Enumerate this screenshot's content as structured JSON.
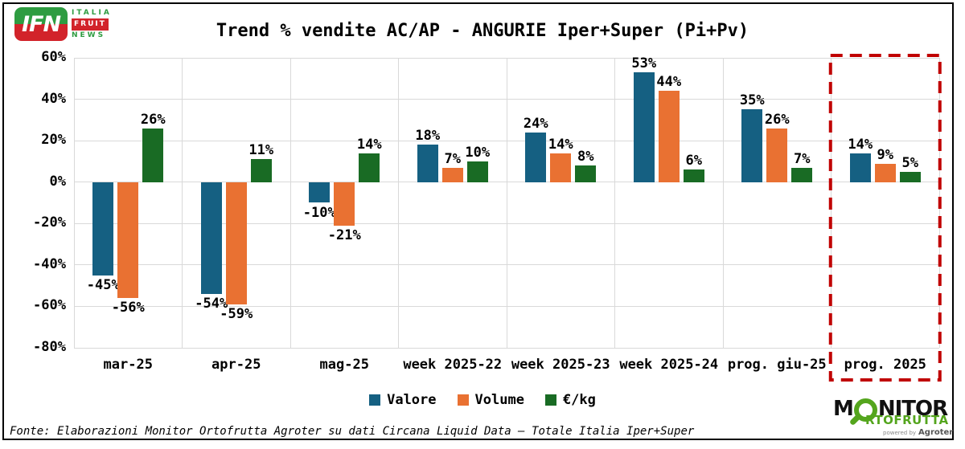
{
  "ifn_logo": {
    "monogram": "IFN",
    "word1": "ITALIA",
    "word2": "FRUIT",
    "word3": "NEWS"
  },
  "chart_data": {
    "type": "bar",
    "title": "Trend % vendite AC/AP - ANGURIE Iper+Super (Pi+Pv)",
    "categories": [
      "mar-25",
      "apr-25",
      "mag-25",
      "week 2025-22",
      "week 2025-23",
      "week 2025-24",
      "prog. giu-25",
      "prog. 2025"
    ],
    "series": [
      {
        "name": "Valore",
        "color": "#156082",
        "values": [
          -45,
          -54,
          -10,
          18,
          24,
          53,
          35,
          14
        ]
      },
      {
        "name": "Volume",
        "color": "#E97132",
        "values": [
          -56,
          -59,
          -21,
          7,
          14,
          44,
          26,
          9
        ]
      },
      {
        "name": "€/kg",
        "color": "#196B24",
        "values": [
          26,
          11,
          14,
          10,
          8,
          6,
          7,
          5
        ]
      }
    ],
    "value_suffix": "%",
    "ylim": [
      -80,
      60
    ],
    "y_ticks": [
      {
        "value": 60,
        "label": "60%"
      },
      {
        "value": 40,
        "label": "40%"
      },
      {
        "value": 20,
        "label": "20%"
      },
      {
        "value": 0,
        "label": "0%"
      },
      {
        "value": -20,
        "label": "-20%"
      },
      {
        "value": -40,
        "label": "-40%"
      },
      {
        "value": -60,
        "label": "-60%"
      },
      {
        "value": -80,
        "label": "-80%"
      }
    ],
    "grid": true,
    "legend_position": "bottom",
    "highlight": {
      "category": "prog. 2025",
      "style": "red-dashed-box",
      "color": "#C00000"
    }
  },
  "footer": {
    "source": "Fonte: Elaborazioni Monitor Ortofrutta Agroter su dati Circana Liquid Data – Totale Italia Iper+Super"
  },
  "monitor_logo": {
    "part1": "M",
    "part2": "NITOR",
    "line2": "RTOFRUTTA",
    "powered_by": "powered by",
    "brand": "Agroter"
  }
}
